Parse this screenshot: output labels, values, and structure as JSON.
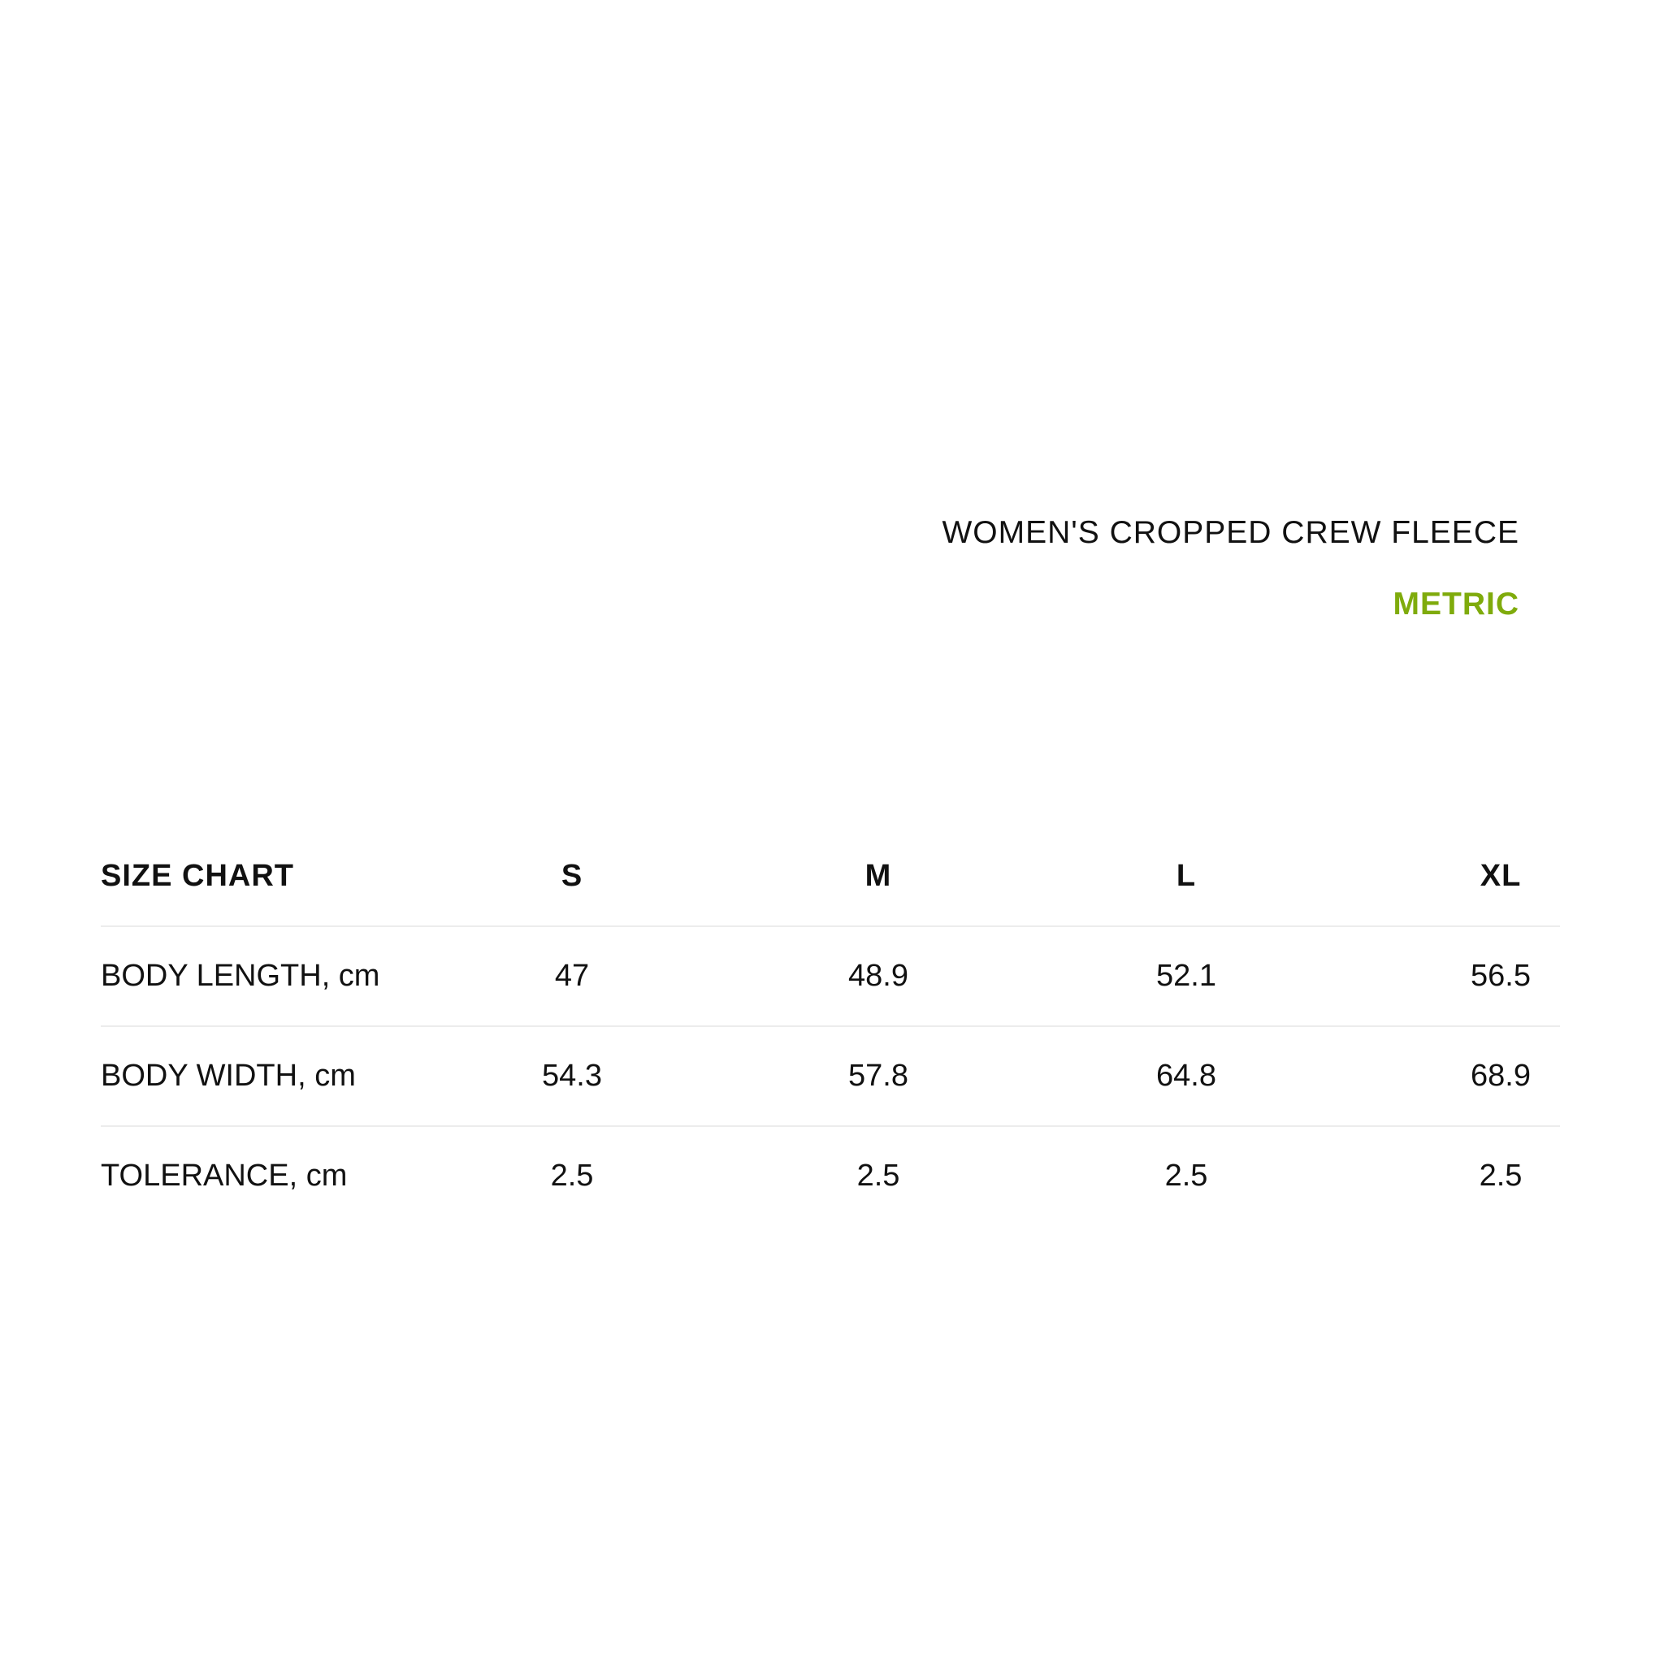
{
  "product_title": "WOMEN'S CROPPED CREW FLEECE",
  "unit_system": "METRIC",
  "colors": {
    "accent": "#7fab0c",
    "text": "#111111",
    "divider": "#ececec"
  },
  "table": {
    "header": [
      "SIZE CHART",
      "S",
      "M",
      "L",
      "XL"
    ],
    "rows": [
      {
        "label": "BODY LENGTH, cm",
        "values": [
          "47",
          "48.9",
          "52.1",
          "56.5"
        ]
      },
      {
        "label": "BODY WIDTH, cm",
        "values": [
          "54.3",
          "57.8",
          "64.8",
          "68.9"
        ]
      },
      {
        "label": "TOLERANCE, cm",
        "values": [
          "2.5",
          "2.5",
          "2.5",
          "2.5"
        ]
      }
    ]
  }
}
